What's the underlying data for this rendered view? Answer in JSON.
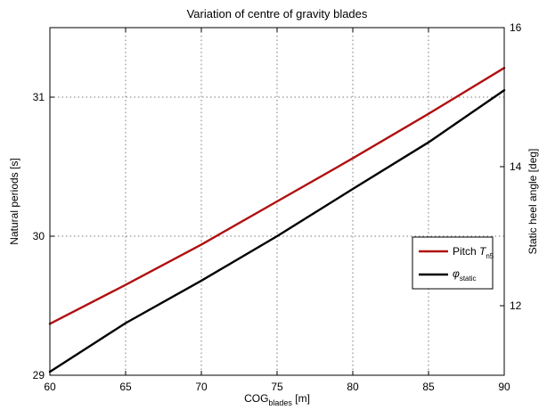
{
  "chart_data": {
    "type": "line",
    "title": "Variation of centre of gravity blades",
    "xlabel": {
      "main": "COG",
      "sub": "blades",
      "unit": " [m]"
    },
    "ylabel_left": "Natural periods [s]",
    "ylabel_right": "Static heel angle [deg]",
    "xlim": [
      60,
      90
    ],
    "ylim_left": [
      29,
      31.5
    ],
    "ylim_right": [
      11,
      16
    ],
    "x_ticks": [
      "60",
      "65",
      "70",
      "75",
      "80",
      "85",
      "90"
    ],
    "y_left_ticks": [
      "29",
      "30",
      "31"
    ],
    "y_right_ticks": [
      "12",
      "14",
      "16"
    ],
    "grid": true,
    "legend_position": "center-right",
    "series": [
      {
        "name_main": "Pitch  ",
        "name_italic": "T",
        "name_sub": "n5",
        "axis": "left",
        "color": "#b01010",
        "x": [
          60,
          65,
          70,
          75,
          80,
          85,
          90
        ],
        "y": [
          29.37,
          29.65,
          29.94,
          30.25,
          30.56,
          30.88,
          31.21
        ]
      },
      {
        "name_main": "",
        "name_italic": "φ",
        "name_sub": "static",
        "axis": "right",
        "color": "#000000",
        "x": [
          60,
          65,
          70,
          75,
          80,
          85,
          90
        ],
        "y": [
          11.05,
          11.75,
          12.36,
          13.0,
          13.68,
          14.35,
          15.1
        ]
      }
    ]
  }
}
